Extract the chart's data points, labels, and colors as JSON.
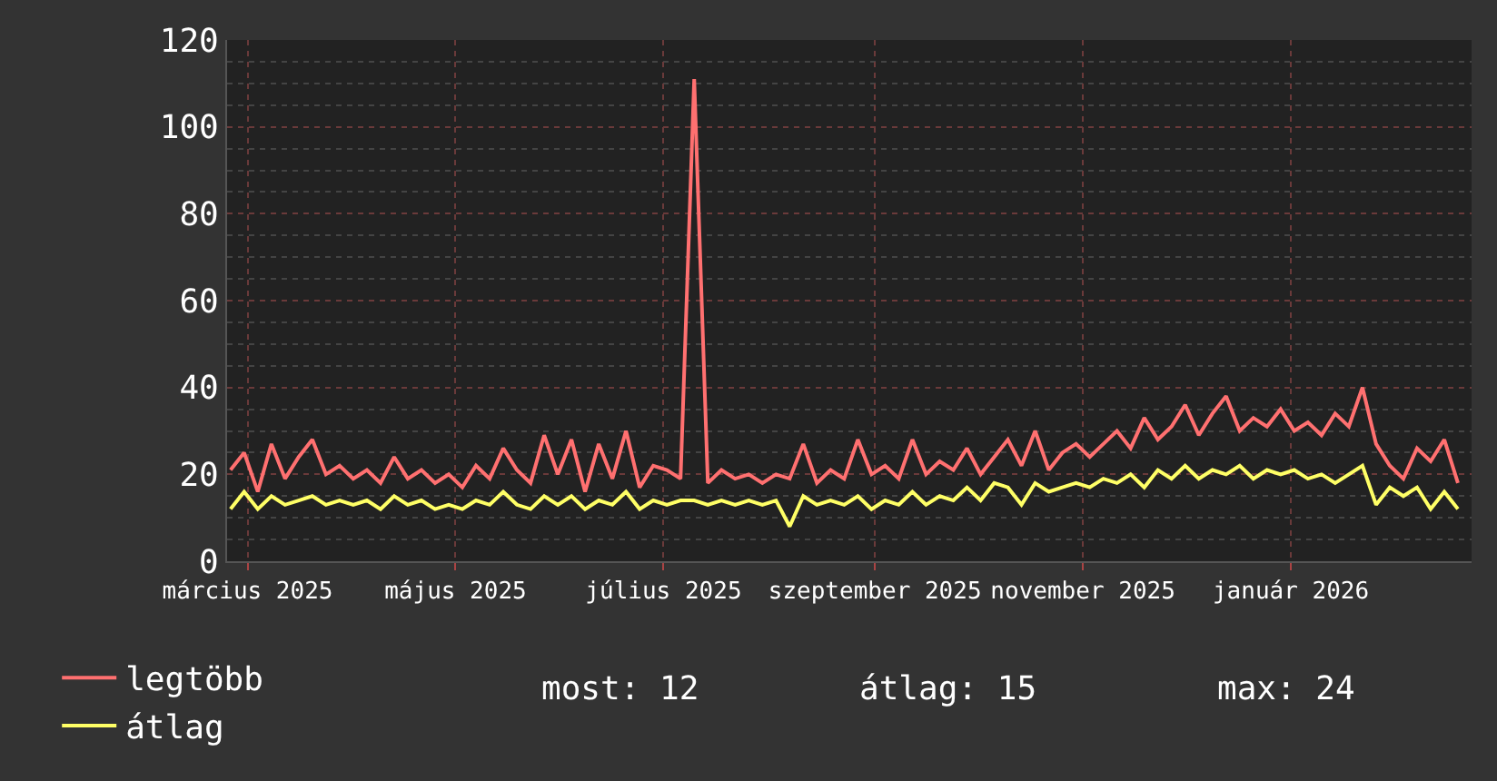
{
  "chart_data": {
    "type": "line",
    "x": [
      "2025-02-24",
      "2025-02-28",
      "2025-03-04",
      "2025-03-08",
      "2025-03-12",
      "2025-03-16",
      "2025-03-20",
      "2025-03-24",
      "2025-03-28",
      "2025-04-01",
      "2025-04-05",
      "2025-04-09",
      "2025-04-13",
      "2025-04-17",
      "2025-04-21",
      "2025-04-25",
      "2025-04-29",
      "2025-05-03",
      "2025-05-07",
      "2025-05-11",
      "2025-05-15",
      "2025-05-19",
      "2025-05-23",
      "2025-05-27",
      "2025-05-31",
      "2025-06-04",
      "2025-06-08",
      "2025-06-12",
      "2025-06-16",
      "2025-06-20",
      "2025-06-24",
      "2025-06-28",
      "2025-07-02",
      "2025-07-06",
      "2025-07-10",
      "2025-07-14",
      "2025-07-18",
      "2025-07-22",
      "2025-07-26",
      "2025-07-30",
      "2025-08-03",
      "2025-08-07",
      "2025-08-11",
      "2025-08-15",
      "2025-08-19",
      "2025-08-23",
      "2025-08-27",
      "2025-08-31",
      "2025-09-04",
      "2025-09-08",
      "2025-09-12",
      "2025-09-16",
      "2025-09-20",
      "2025-09-24",
      "2025-09-28",
      "2025-10-02",
      "2025-10-06",
      "2025-10-10",
      "2025-10-14",
      "2025-10-18",
      "2025-10-22",
      "2025-10-26",
      "2025-10-30",
      "2025-11-03",
      "2025-11-07",
      "2025-11-11",
      "2025-11-15",
      "2025-11-19",
      "2025-11-23",
      "2025-11-27",
      "2025-12-01",
      "2025-12-05",
      "2025-12-09",
      "2025-12-13",
      "2025-12-17",
      "2025-12-21",
      "2025-12-25",
      "2025-12-29",
      "2026-01-02",
      "2026-01-06",
      "2026-01-10",
      "2026-01-14",
      "2026-01-18",
      "2026-01-22",
      "2026-01-26",
      "2026-01-30",
      "2026-02-03",
      "2026-02-07",
      "2026-02-11",
      "2026-02-15",
      "2026-02-19"
    ],
    "series": [
      {
        "name": "legtöbb",
        "color": "#ff7070",
        "values": [
          21,
          25,
          16,
          27,
          19,
          24,
          28,
          20,
          22,
          19,
          21,
          18,
          24,
          19,
          21,
          18,
          20,
          17,
          22,
          19,
          26,
          21,
          18,
          29,
          20,
          28,
          16,
          27,
          19,
          30,
          17,
          22,
          21,
          19,
          111,
          18,
          21,
          19,
          20,
          18,
          20,
          19,
          27,
          18,
          21,
          19,
          28,
          20,
          22,
          19,
          28,
          20,
          23,
          21,
          26,
          20,
          24,
          28,
          22,
          30,
          21,
          25,
          27,
          24,
          27,
          30,
          26,
          33,
          28,
          31,
          36,
          29,
          34,
          38,
          30,
          33,
          31,
          35,
          30,
          32,
          29,
          34,
          31,
          40,
          27,
          22,
          19,
          26,
          23,
          28,
          18
        ]
      },
      {
        "name": "átlag",
        "color": "#ffff66",
        "values": [
          12,
          16,
          12,
          15,
          13,
          14,
          15,
          13,
          14,
          13,
          14,
          12,
          15,
          13,
          14,
          12,
          13,
          12,
          14,
          13,
          16,
          13,
          12,
          15,
          13,
          15,
          12,
          14,
          13,
          16,
          12,
          14,
          13,
          14,
          14,
          13,
          14,
          13,
          14,
          13,
          14,
          8,
          15,
          13,
          14,
          13,
          15,
          12,
          14,
          13,
          16,
          13,
          15,
          14,
          17,
          14,
          18,
          17,
          13,
          18,
          16,
          17,
          18,
          17,
          19,
          18,
          20,
          17,
          21,
          19,
          22,
          19,
          21,
          20,
          22,
          19,
          21,
          20,
          21,
          19,
          20,
          18,
          20,
          22,
          13,
          17,
          15,
          17,
          12,
          16,
          12
        ]
      }
    ],
    "xlim": [
      "2025-02-23",
      "2026-02-23"
    ],
    "xticks": [
      {
        "value": "2025-03-01",
        "label": "március 2025"
      },
      {
        "value": "2025-05-01",
        "label": "május 2025"
      },
      {
        "value": "2025-07-01",
        "label": "július 2025"
      },
      {
        "value": "2025-09-01",
        "label": "szeptember 2025"
      },
      {
        "value": "2025-11-01",
        "label": "november 2025"
      },
      {
        "value": "2026-01-01",
        "label": "január 2026"
      }
    ],
    "ylim": [
      0,
      120
    ],
    "yticks": [
      0,
      20,
      40,
      60,
      80,
      100,
      120
    ],
    "grid": true,
    "legend": "bottom left",
    "marker": "none",
    "line_style": "solid",
    "annotations": [
      "most: 12",
      "átlag: 15",
      "max: 24"
    ]
  }
}
